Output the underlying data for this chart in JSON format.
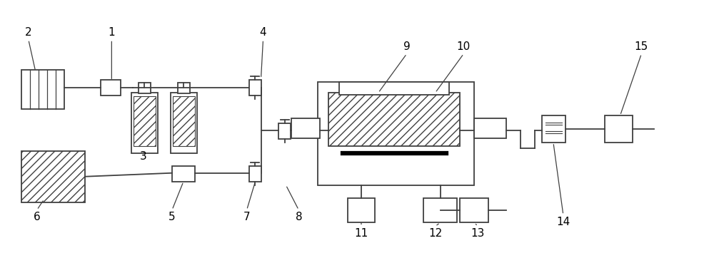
{
  "bg_color": "#ffffff",
  "line_color": "#404040",
  "fig_width": 10.0,
  "fig_height": 3.55,
  "dpi": 100
}
